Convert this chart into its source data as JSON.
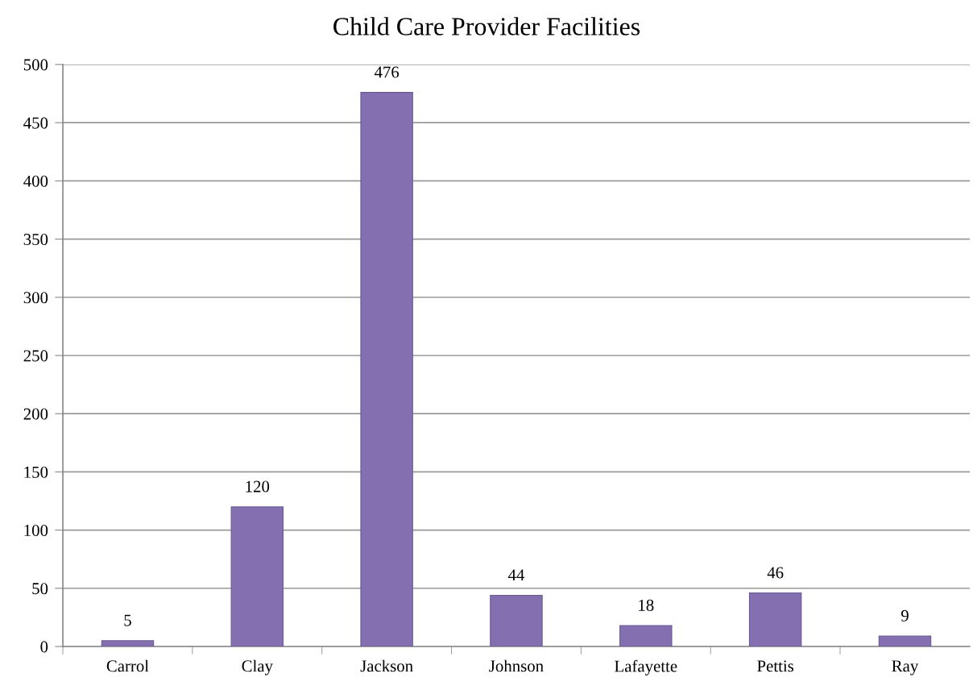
{
  "chart_data": {
    "type": "bar",
    "title": "Child Care Provider Facilities",
    "categories": [
      "Carrol",
      "Clay",
      "Jackson",
      "Johnson",
      "Lafayette",
      "Pettis",
      "Ray"
    ],
    "values": [
      5,
      120,
      476,
      44,
      18,
      46,
      9
    ],
    "color": "#8470b0",
    "ylim": [
      0,
      500
    ],
    "yticks": [
      0,
      50,
      100,
      150,
      200,
      250,
      300,
      350,
      400,
      450,
      500
    ],
    "grid": "y",
    "data_labels": true,
    "legend": false
  }
}
